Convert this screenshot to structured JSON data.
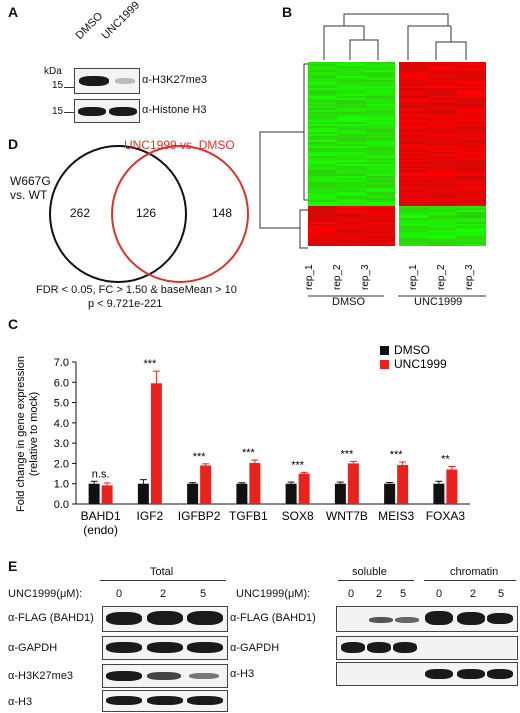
{
  "panels": {
    "a": "A",
    "b": "B",
    "c": "C",
    "d": "D",
    "e": "E"
  },
  "panelA": {
    "lanes": [
      "DMSO",
      "UNC1999"
    ],
    "kda_label": "kDa",
    "rows": [
      {
        "kda": "15",
        "label": "α-H3K27me3"
      },
      {
        "kda": "15",
        "label": "α-Histone H3"
      }
    ]
  },
  "panelB": {
    "samples": [
      "rep_1",
      "rep_2",
      "rep_3",
      "rep_1",
      "rep_2",
      "rep_3"
    ],
    "groups": [
      "DMSO",
      "UNC1999"
    ]
  },
  "panelD": {
    "left_label_line1": "W667G",
    "left_label_line2": "vs. WT",
    "right_label": "UNC1999 vs. DMSO",
    "left_only": "262",
    "overlap": "126",
    "right_only": "148",
    "footer_line1": "FDR < 0.05, FC > 1.50 & baseMean > 10",
    "footer_line2": "p < 9.721e-221",
    "colors": {
      "left": "#111111",
      "right": "#d9342b"
    }
  },
  "panelE": {
    "total_title": "Total",
    "soluble_title": "soluble",
    "chromatin_title": "chromatin",
    "conc_label": "UNC1999(μM):",
    "conc_values": [
      "0",
      "2",
      "5"
    ],
    "left_rows": [
      "α-FLAG (BAHD1)",
      "α-GAPDH",
      "α-H3K27me3",
      "α-H3"
    ],
    "right_rows": [
      "α-FLAG (BAHD1)",
      "α-GAPDH",
      "α-H3"
    ]
  },
  "chart_data": {
    "type": "bar",
    "ylabel": "Fold change in gene expression (relative to mock)",
    "ylabel_line1": "Fold change in gene expression",
    "ylabel_line2": "(relative to mock)",
    "ylim": [
      0,
      7.0
    ],
    "yticks": [
      "0.0",
      "1.0",
      "2.0",
      "3.0",
      "4.0",
      "5.0",
      "6.0",
      "7.0"
    ],
    "categories": [
      "BAHD1",
      "IGF2",
      "IGFBP2",
      "TGFB1",
      "SOX8",
      "WNT7B",
      "MEIS3",
      "FOXA3"
    ],
    "category_sublabel": "(endo)",
    "series": [
      {
        "name": "DMSO",
        "color": "#111111",
        "values": [
          1.0,
          1.0,
          1.0,
          1.0,
          1.0,
          1.0,
          1.0,
          1.0
        ],
        "errors": [
          0.12,
          0.2,
          0.05,
          0.05,
          0.08,
          0.08,
          0.06,
          0.12
        ]
      },
      {
        "name": "UNC1999",
        "color": "#e8231d",
        "values": [
          0.92,
          5.95,
          1.9,
          2.02,
          1.5,
          2.0,
          1.92,
          1.7
        ],
        "errors": [
          0.12,
          0.6,
          0.08,
          0.15,
          0.06,
          0.1,
          0.15,
          0.15
        ]
      }
    ],
    "significance": [
      "n.s.",
      "***",
      "***",
      "***",
      "***",
      "***",
      "***",
      "**"
    ],
    "legend_position": "top-right"
  }
}
